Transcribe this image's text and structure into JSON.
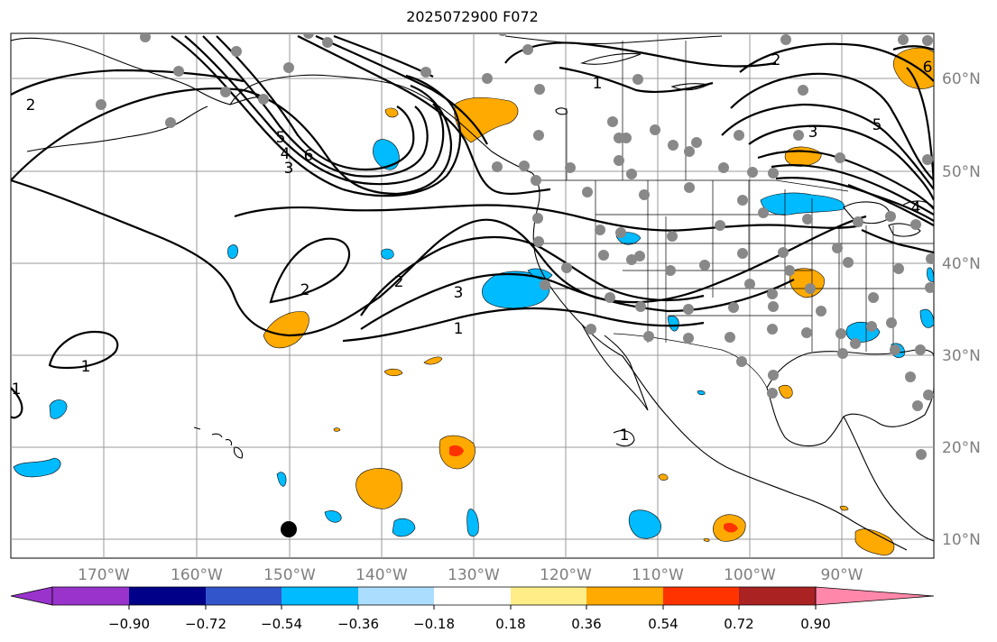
{
  "title": "2025072900 F072",
  "map": {
    "lon_labels": [
      "170°W",
      "160°W",
      "150°W",
      "140°W",
      "130°W",
      "120°W",
      "110°W",
      "100°W",
      "90°W"
    ],
    "lat_labels": [
      "60°N",
      "50°N",
      "40°N",
      "30°N",
      "20°N",
      "10°N"
    ],
    "contour_labels": [
      "2",
      "1",
      "2",
      "3",
      "5",
      "6",
      "2",
      "3",
      "1",
      "1",
      "1",
      "2",
      "3",
      "4",
      "5",
      "6",
      "1",
      "5",
      "6",
      "4",
      "3"
    ]
  },
  "colorbar": {
    "tick_labels": [
      "−0.90",
      "−0.72",
      "−0.54",
      "−0.36",
      "−0.18",
      "0.18",
      "0.36",
      "0.54",
      "0.72",
      "0.90"
    ],
    "colors": [
      "#9933cc",
      "#000088",
      "#3355cc",
      "#00bbff",
      "#aaddff",
      "#ffffff",
      "#ffee88",
      "#ffaa00",
      "#ff3300",
      "#aa2222",
      "#ff88aa"
    ]
  }
}
